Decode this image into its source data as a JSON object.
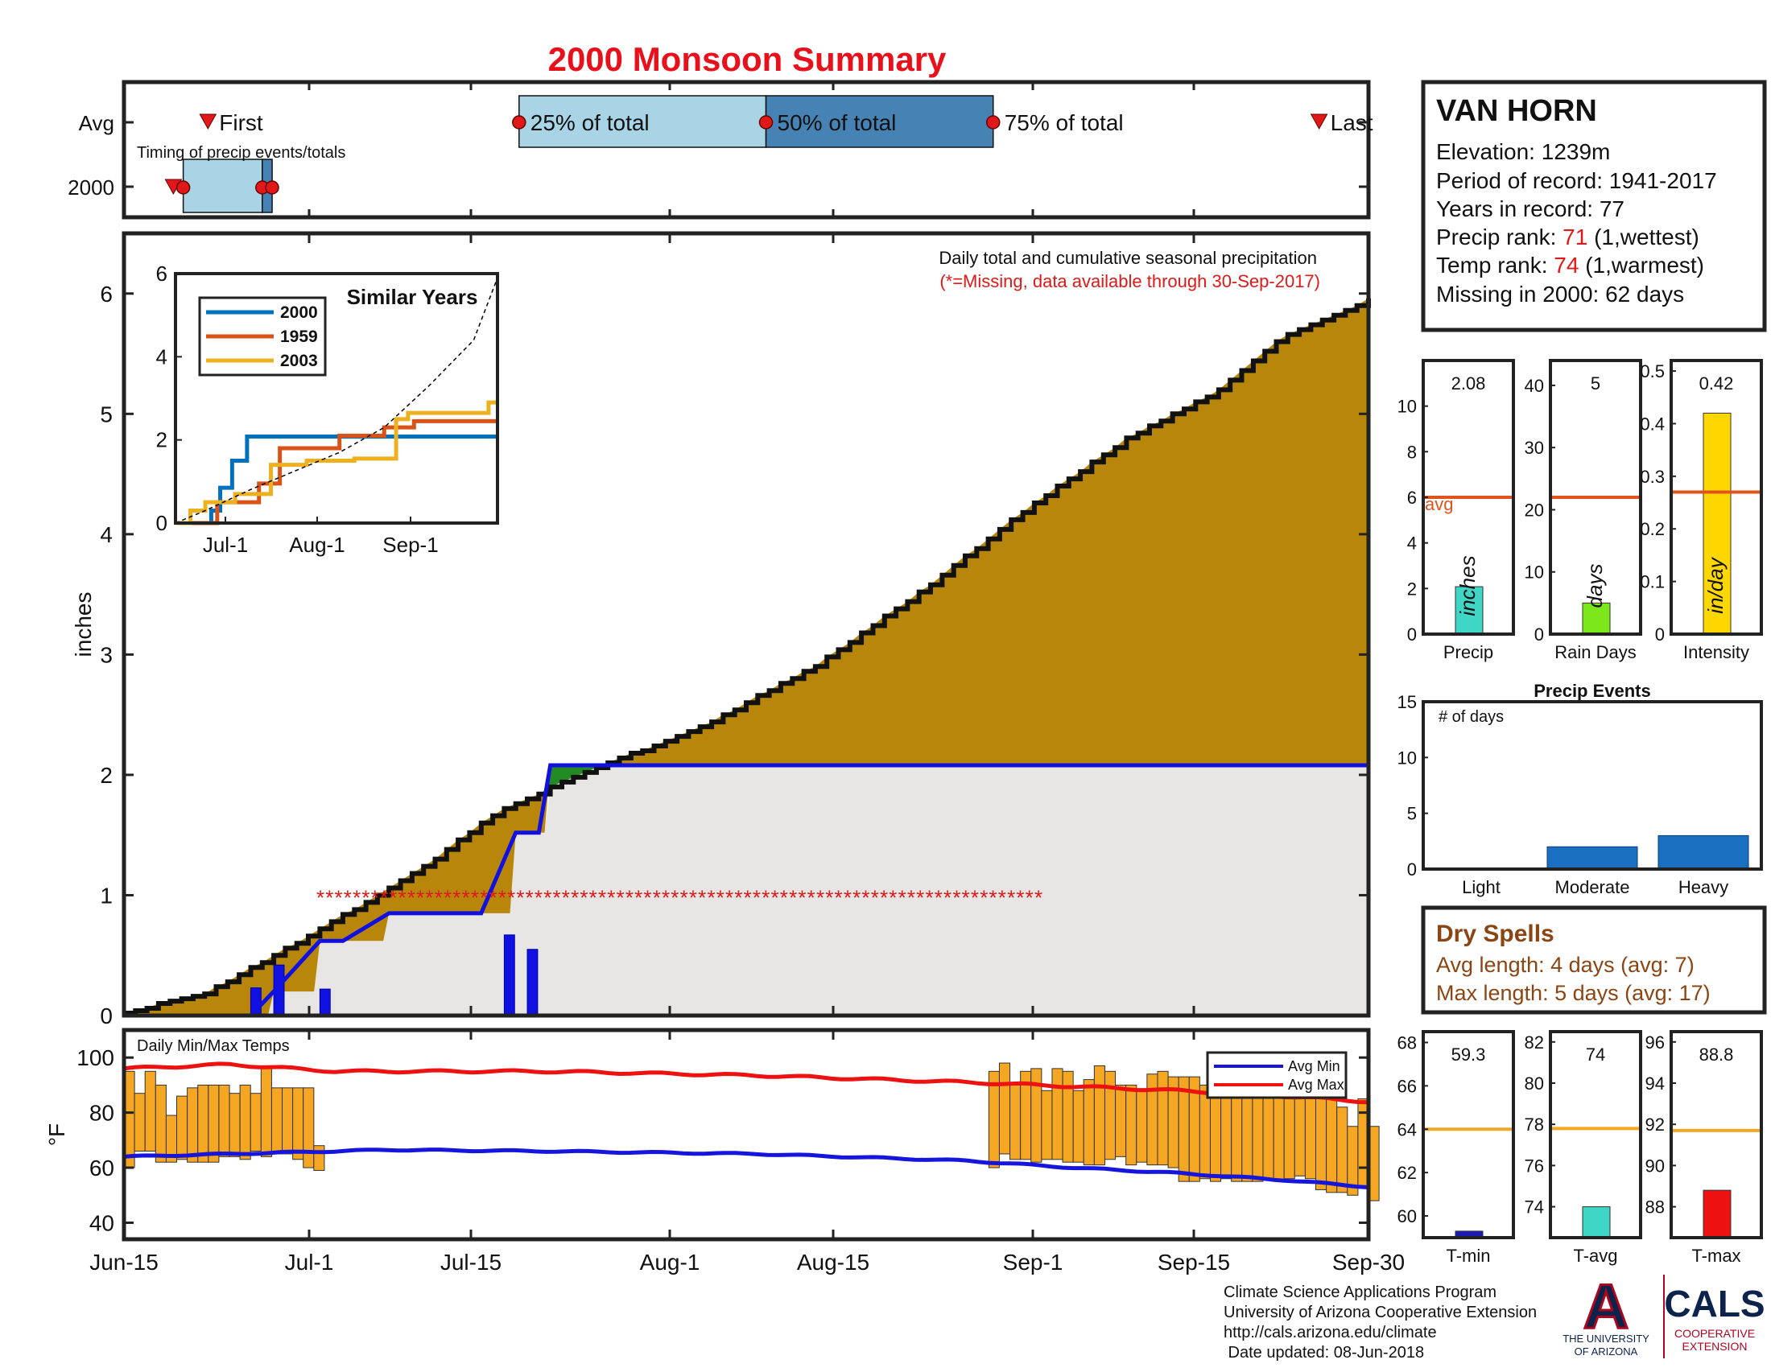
{
  "title": "2000 Monsoon Summary",
  "colors": {
    "title": "#e8101a",
    "cumulative_2000": "#228b22",
    "avg_excess": "#b8860b",
    "below_normal": "#e8e6e4",
    "daily_precip": "#1010e0",
    "missing": "#e01818",
    "temp_bar": "#f5a623",
    "avg_max": "#ee1111",
    "avg_min": "#1515dd",
    "timing_light": "#a8d4e6",
    "timing_dark": "#4682b4",
    "dry_spell_text": "#8b4513"
  },
  "timing": {
    "row_avg": "Avg",
    "row_year": "2000",
    "subtitle": "Timing of precip events/totals",
    "first": "First",
    "q25": "25% of total",
    "q50": "50% of total",
    "q75": "75% of total",
    "last": "Last"
  },
  "main": {
    "ylabel": "inches",
    "note": "Daily total and cumulative seasonal precipitation",
    "missing_note": "(*=Missing, data available through 30-Sep-2017)"
  },
  "inset": {
    "title": "Similar Years",
    "xticks": [
      "Jul-1",
      "Aug-1",
      "Sep-1"
    ],
    "yticks": [
      "0",
      "2",
      "4",
      "6"
    ]
  },
  "station": {
    "name": "VAN HORN",
    "elevation": "Elevation: 1239m",
    "period": "Period of record: 1941-2017",
    "years": "Years in record: 77",
    "precip_rank_label": "Precip rank: ",
    "precip_rank": "71",
    "precip_rank_suffix": " (1,wettest)",
    "temp_rank_label": "Temp rank: ",
    "temp_rank": "74",
    "temp_rank_suffix": " (1,warmest)",
    "missing": "Missing in 2000: 62 days"
  },
  "small_bars": {
    "precip": {
      "value_label": "2.08",
      "unit": "inches",
      "xlabel": "Precip",
      "avg_label": "avg",
      "color": "#3fd6c6"
    },
    "raindays": {
      "value_label": "5",
      "unit": "days",
      "xlabel": "Rain Days",
      "color": "#7ce81c"
    },
    "intensity": {
      "value_label": "0.42",
      "unit": "in/day",
      "xlabel": "Intensity",
      "color": "#ffd700"
    }
  },
  "events": {
    "title": "Precip Events",
    "ylabel": "# of days",
    "color": "#1a6fc0"
  },
  "dry_spells": {
    "title": "Dry Spells",
    "avg": "Avg length: 4 days (avg: 7)",
    "max": "Max length: 5 days (avg: 17)"
  },
  "temps": {
    "label": "Daily Min/Max Temps",
    "ylabel": "°F",
    "legend_min": "Avg Min",
    "legend_max": "Avg Max"
  },
  "temp_summary": {
    "tmin": {
      "value_label": "59.3",
      "xlabel": "T-min",
      "color": "#1a1ab8"
    },
    "tavg": {
      "value_label": "74",
      "xlabel": "T-avg",
      "color": "#3fd6c6"
    },
    "tmax": {
      "value_label": "88.8",
      "xlabel": "T-max",
      "color": "#ee1111"
    }
  },
  "credits": {
    "line1": "Climate Science Applications Program",
    "line2": "University of Arizona Cooperative Extension",
    "line3": "http://cals.arizona.edu/climate",
    "line4": " Date updated: 08-Jun-2018"
  },
  "logos": {
    "ua_letter": "A",
    "ua_text1": "THE UNIVERSITY",
    "ua_text2": "OF ARIZONA",
    "cals": "CALS",
    "cals_sub1": "COOPERATIVE",
    "cals_sub2": "EXTENSION"
  },
  "chart_data": [
    {
      "type": "area",
      "name": "main",
      "x_ticks": [
        "Jun-15",
        "Jul-1",
        "Jul-15",
        "Aug-1",
        "Aug-15",
        "Sep-1",
        "Sep-15",
        "Sep-30"
      ],
      "ylim": [
        0,
        6.5
      ],
      "y_ticks": [
        0,
        1,
        2,
        3,
        4,
        5,
        6
      ],
      "cumulative_2000": [
        [
          0,
          0
        ],
        [
          11,
          0
        ],
        [
          13,
          0.2
        ],
        [
          17,
          0.62
        ],
        [
          19,
          0.62
        ],
        [
          23,
          0.85
        ],
        [
          31,
          0.85
        ],
        [
          34,
          1.52
        ],
        [
          36,
          1.52
        ],
        [
          37,
          2.08
        ],
        [
          108,
          2.08
        ]
      ],
      "avg_cumulative": [
        [
          0,
          0.02
        ],
        [
          16,
          0.2
        ],
        [
          33,
          0.62
        ],
        [
          55,
          1.2
        ],
        [
          70,
          1.7
        ],
        [
          88,
          2.05
        ],
        [
          108,
          2.4
        ],
        [
          130,
          2.92
        ],
        [
          150,
          3.55
        ],
        [
          170,
          4.25
        ],
        [
          188,
          4.8
        ],
        [
          205,
          5.2
        ],
        [
          217,
          5.65
        ],
        [
          233,
          5.95
        ]
      ],
      "daily_bars": [
        [
          11,
          0.23
        ],
        [
          13,
          0.42
        ],
        [
          17,
          0.22
        ],
        [
          33,
          0.67
        ],
        [
          35,
          0.55
        ]
      ],
      "missing_range": [
        37,
        165
      ],
      "missing_level": 1.0
    },
    {
      "type": "line",
      "name": "inset",
      "title": "Similar Years",
      "xlim": [
        0,
        108
      ],
      "ylim": [
        0,
        6
      ],
      "x_ticks": [
        "Jul-1",
        "Aug-1",
        "Sep-1"
      ],
      "y_ticks": [
        0,
        2,
        4,
        6
      ],
      "series": [
        {
          "name": "2000",
          "color": "#0072bd",
          "points": [
            [
              0,
              0
            ],
            [
              12,
              0
            ],
            [
              12,
              0.3
            ],
            [
              15,
              0.3
            ],
            [
              15,
              0.85
            ],
            [
              19,
              0.85
            ],
            [
              19,
              1.5
            ],
            [
              24,
              1.5
            ],
            [
              24,
              2.08
            ],
            [
              108,
              2.08
            ]
          ]
        },
        {
          "name": "1959",
          "color": "#d95319",
          "points": [
            [
              0,
              0
            ],
            [
              14,
              0
            ],
            [
              14,
              0.5
            ],
            [
              28,
              0.5
            ],
            [
              28,
              0.95
            ],
            [
              35,
              0.95
            ],
            [
              35,
              1.8
            ],
            [
              55,
              1.8
            ],
            [
              55,
              2.1
            ],
            [
              70,
              2.1
            ],
            [
              70,
              2.3
            ],
            [
              80,
              2.3
            ],
            [
              80,
              2.45
            ],
            [
              108,
              2.45
            ]
          ]
        },
        {
          "name": "2003",
          "color": "#edb120",
          "points": [
            [
              0,
              0
            ],
            [
              5,
              0
            ],
            [
              5,
              0.3
            ],
            [
              10,
              0.3
            ],
            [
              10,
              0.5
            ],
            [
              20,
              0.5
            ],
            [
              20,
              0.7
            ],
            [
              32,
              0.7
            ],
            [
              32,
              1.4
            ],
            [
              44,
              1.4
            ],
            [
              44,
              1.5
            ],
            [
              60,
              1.5
            ],
            [
              60,
              1.55
            ],
            [
              74,
              1.55
            ],
            [
              74,
              2.5
            ],
            [
              78,
              2.5
            ],
            [
              78,
              2.65
            ],
            [
              105,
              2.65
            ],
            [
              105,
              2.9
            ],
            [
              108,
              2.9
            ]
          ]
        },
        {
          "name": "",
          "color": "#000",
          "points": [
            [
              0,
              0
            ],
            [
              10,
              0.3
            ],
            [
              25,
              0.8
            ],
            [
              40,
              1.25
            ],
            [
              55,
              1.7
            ],
            [
              70,
              2.3
            ],
            [
              85,
              3.3
            ],
            [
              100,
              4.4
            ],
            [
              108,
              5.9
            ]
          ]
        }
      ]
    },
    {
      "type": "bar",
      "name": "timing",
      "avg": {
        "first": 8.5,
        "q25": 40,
        "q50": 65,
        "q75": 88,
        "last": 121
      },
      "year": {
        "first": 5,
        "q25": 6,
        "q50": 14,
        "q75": 15,
        "last": 15.5
      },
      "xlim": [
        0,
        126
      ]
    },
    {
      "type": "bar",
      "name": "precip",
      "values": [
        2.08
      ],
      "avg": 6.0,
      "ylim": [
        0,
        12
      ],
      "y_ticks": [
        0,
        2,
        4,
        6,
        8,
        10
      ]
    },
    {
      "type": "bar",
      "name": "raindays",
      "values": [
        5
      ],
      "avg": 22,
      "ylim": [
        0,
        44
      ],
      "y_ticks": [
        0,
        10,
        20,
        30,
        40
      ]
    },
    {
      "type": "bar",
      "name": "intensity",
      "values": [
        0.42
      ],
      "avg": 0.27,
      "ylim": [
        0,
        0.52
      ],
      "y_ticks": [
        0,
        0.1,
        0.2,
        0.3,
        0.4,
        0.5
      ]
    },
    {
      "type": "bar",
      "name": "events",
      "categories": [
        "Light",
        "Moderate",
        "Heavy"
      ],
      "values": [
        0,
        2,
        3
      ],
      "ylim": [
        0,
        15
      ],
      "y_ticks": [
        0,
        5,
        10,
        15
      ]
    },
    {
      "type": "bar",
      "name": "temps",
      "ylim": [
        34,
        110
      ],
      "y_ticks": [
        40,
        60,
        80,
        100
      ],
      "x_ticks": [
        "Jun-15",
        "Jul-1",
        "Jul-15",
        "Aug-1",
        "Aug-15",
        "Sep-1",
        "Sep-15",
        "Sep-30"
      ],
      "daily": [
        [
          0,
          60,
          95
        ],
        [
          1,
          66,
          87
        ],
        [
          2,
          66,
          95
        ],
        [
          3,
          62,
          90
        ],
        [
          4,
          62,
          79
        ],
        [
          5,
          63,
          86
        ],
        [
          6,
          62,
          89
        ],
        [
          7,
          62,
          90
        ],
        [
          8,
          62,
          90
        ],
        [
          9,
          64,
          90
        ],
        [
          10,
          64,
          87
        ],
        [
          11,
          63,
          90
        ],
        [
          12,
          66,
          87
        ],
        [
          13,
          64,
          97
        ],
        [
          14,
          65,
          89
        ],
        [
          15,
          65,
          89
        ],
        [
          16,
          63,
          89
        ],
        [
          17,
          60,
          89
        ],
        [
          18,
          59,
          68
        ],
        [
          82,
          60,
          95
        ],
        [
          83,
          65,
          98
        ],
        [
          84,
          63,
          90
        ],
        [
          85,
          63,
          95
        ],
        [
          86,
          62,
          96
        ],
        [
          87,
          63,
          88
        ],
        [
          88,
          63,
          96
        ],
        [
          89,
          62,
          95
        ],
        [
          90,
          62,
          88
        ],
        [
          91,
          61,
          92
        ],
        [
          92,
          61,
          97
        ],
        [
          93,
          63,
          95
        ],
        [
          94,
          64,
          90
        ],
        [
          95,
          61,
          90
        ],
        [
          96,
          62,
          88
        ],
        [
          97,
          61,
          94
        ],
        [
          98,
          61,
          95
        ],
        [
          99,
          60,
          93
        ],
        [
          100,
          55,
          93
        ],
        [
          101,
          55,
          93
        ],
        [
          102,
          56,
          90
        ],
        [
          103,
          55,
          92
        ],
        [
          104,
          56,
          90
        ],
        [
          105,
          55,
          90
        ],
        [
          106,
          55,
          93
        ],
        [
          107,
          55,
          89
        ],
        [
          108,
          56,
          91
        ],
        [
          109,
          55,
          88
        ],
        [
          110,
          56,
          91
        ],
        [
          111,
          57,
          89
        ],
        [
          112,
          56,
          87
        ],
        [
          113,
          52,
          90
        ],
        [
          114,
          51,
          88
        ],
        [
          115,
          51,
          82
        ],
        [
          116,
          50,
          75
        ],
        [
          117,
          53,
          85
        ],
        [
          118,
          48,
          75
        ]
      ],
      "avg_max": [
        [
          0,
          96
        ],
        [
          10,
          97.5
        ],
        [
          20,
          95
        ],
        [
          40,
          95
        ],
        [
          60,
          93.5
        ],
        [
          80,
          91
        ],
        [
          90,
          89.5
        ],
        [
          100,
          88
        ],
        [
          110,
          86
        ],
        [
          118,
          84
        ]
      ],
      "avg_min": [
        [
          0,
          64
        ],
        [
          15,
          65.5
        ],
        [
          25,
          66.5
        ],
        [
          40,
          66
        ],
        [
          60,
          65
        ],
        [
          80,
          62.5
        ],
        [
          90,
          60
        ],
        [
          100,
          58
        ],
        [
          110,
          55.5
        ],
        [
          118,
          53
        ]
      ]
    },
    {
      "type": "bar",
      "name": "temp_summary",
      "tmin": {
        "value": 59.3,
        "avg": 64,
        "ylim": [
          59,
          68.5
        ],
        "y_ticks": [
          60,
          62,
          64,
          66,
          68
        ]
      },
      "tavg": {
        "value": 74,
        "avg": 77.8,
        "ylim": [
          72.5,
          82.5
        ],
        "y_ticks": [
          74,
          76,
          78,
          80,
          82
        ]
      },
      "tmax": {
        "value": 88.8,
        "avg": 91.7,
        "ylim": [
          86.5,
          96.5
        ],
        "y_ticks": [
          88,
          90,
          92,
          94,
          96
        ]
      }
    }
  ]
}
